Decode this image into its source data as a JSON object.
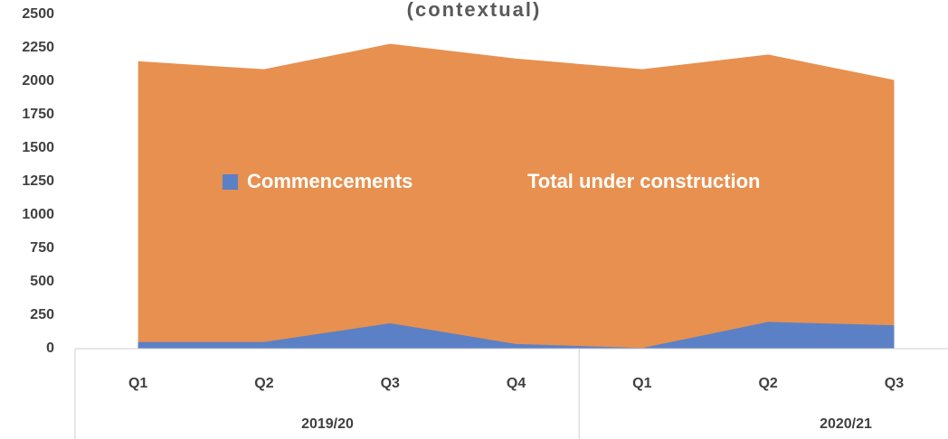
{
  "chart_data": {
    "type": "area",
    "title": "(contextual)",
    "categories": [
      "Q1",
      "Q2",
      "Q3",
      "Q4",
      "Q1",
      "Q2",
      "Q3"
    ],
    "groups": [
      {
        "label": "2019/20",
        "size": 4
      },
      {
        "label": "2020/21",
        "size": 3
      }
    ],
    "series": [
      {
        "name": "Commencements",
        "color": "#5b80c6",
        "values": [
          50,
          50,
          190,
          35,
          5,
          200,
          175
        ]
      },
      {
        "name": "Total under construction",
        "color": "#e8904f",
        "values": [
          2150,
          2090,
          2280,
          2170,
          2090,
          2200,
          2010
        ]
      }
    ],
    "ylim": [
      0,
      2500
    ],
    "yticks": [
      0,
      250,
      500,
      750,
      1000,
      1250,
      1500,
      1750,
      2000,
      2250,
      2500
    ],
    "grid": false,
    "legend": "center"
  }
}
